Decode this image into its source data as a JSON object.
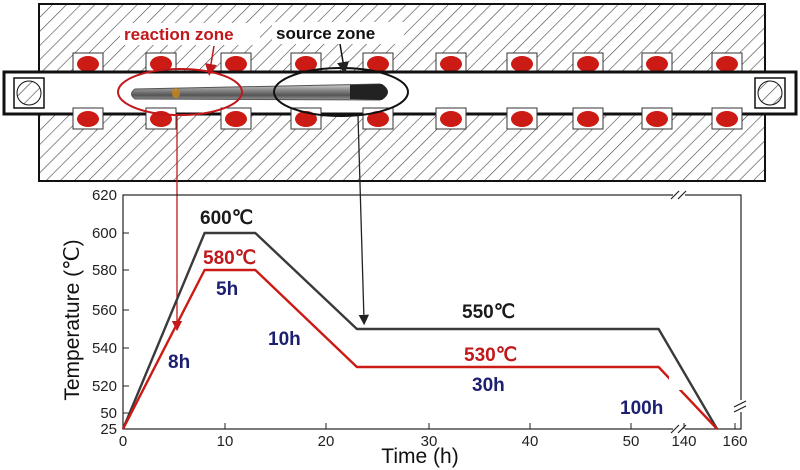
{
  "furnace": {
    "reaction_zone_label": "reaction zone",
    "source_zone_label": "source zone",
    "reaction_color": "#c0181b",
    "source_color": "#111111",
    "heater_color": "#cc1a14"
  },
  "annotations": {
    "t_high_peak": "600℃",
    "t_low_peak": "580℃",
    "t_high_hold": "550℃",
    "t_low_hold": "530℃",
    "dur_ramp": "8h",
    "dur_peak": "5h",
    "dur_cool": "10h",
    "dur_hold": "30h",
    "dur_final": "100h",
    "black_color": "#1a1a1a",
    "red_color": "#cc1a14",
    "navy_color": "#1c2070"
  },
  "chart_data": {
    "type": "line",
    "title": "",
    "xlabel": "Time (h)",
    "ylabel": "Temperature (℃)",
    "xlim": [
      0,
      160
    ],
    "ylim": [
      25,
      620
    ],
    "x_tick_labels": [
      "0",
      "10",
      "20",
      "30",
      "40",
      "50",
      "140",
      "160"
    ],
    "y_tick_labels": [
      "25",
      "50",
      "520",
      "540",
      "560",
      "580",
      "600",
      "620"
    ],
    "axis_breaks": "x between 55 and 140; y between 50 and 510",
    "series": [
      {
        "name": "source zone",
        "color": "#3a3a3a",
        "points": [
          [
            0,
            25
          ],
          [
            8,
            600
          ],
          [
            13,
            600
          ],
          [
            23,
            550
          ],
          [
            53,
            550
          ],
          [
            153,
            25
          ]
        ]
      },
      {
        "name": "reaction zone",
        "color": "#cc1a14",
        "points": [
          [
            0,
            25
          ],
          [
            8,
            580
          ],
          [
            13,
            580
          ],
          [
            23,
            530
          ],
          [
            53,
            530
          ],
          [
            153,
            25
          ]
        ]
      }
    ]
  }
}
